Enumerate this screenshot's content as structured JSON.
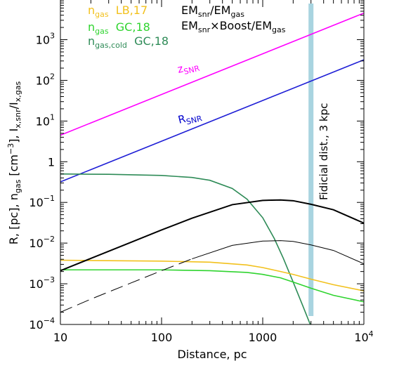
{
  "chart_data": {
    "type": "line",
    "title": "",
    "xlabel": "Distance, pc",
    "ylabel_parts": {
      "a": "R, [pc], n",
      "a_sub": "gas",
      "b": " [cm",
      "b_sup": "−3",
      "c": "], I",
      "c_sub": "x,snr",
      "d": "/I",
      "d_sub": "x,gas"
    },
    "xscale": "log",
    "yscale": "log",
    "xlim": [
      10,
      10000
    ],
    "ylim": [
      0.0001,
      10000
    ],
    "x_ticks": [
      {
        "value": 10,
        "label": "10"
      },
      {
        "value": 100,
        "label": "100"
      },
      {
        "value": 1000,
        "label": "1000"
      },
      {
        "value": 10000,
        "label": "10",
        "sup": "4"
      }
    ],
    "y_ticks": [
      {
        "value": 0.0001,
        "base": "10",
        "sup": "−4"
      },
      {
        "value": 0.001,
        "base": "10",
        "sup": "−3"
      },
      {
        "value": 0.01,
        "base": "10",
        "sup": "−2"
      },
      {
        "value": 0.1,
        "base": "10",
        "sup": "−1"
      },
      {
        "value": 1,
        "base": "1",
        "sup": ""
      },
      {
        "value": 10,
        "base": "10",
        "sup": "1"
      },
      {
        "value": 100,
        "base": "10",
        "sup": "2"
      },
      {
        "value": 1000,
        "base": "10",
        "sup": "3"
      }
    ],
    "fiducial": {
      "x": 3000,
      "label": "Fidicial dist., 3 kpc",
      "color": "#a8d4e0"
    },
    "legend": [
      {
        "main": "n",
        "sub": "gas",
        "rest": "  LB,17",
        "color": "#f2c11d"
      },
      {
        "main": "n",
        "sub": "gas",
        "rest": "  GC,18",
        "color": "#2fd42f"
      },
      {
        "main": "n",
        "sub": "gas,cold",
        "rest": "  GC,18",
        "color": "#2e8b57"
      },
      {
        "main": "EM",
        "sub": "snr",
        "rest": "/EM",
        "sub2": "gas",
        "color": "#000000"
      },
      {
        "main": "EM",
        "sub": "snr",
        "rest": "×Boost/EM",
        "sub2": "gas",
        "color": "#000000"
      }
    ],
    "curve_labels": [
      {
        "main": "z",
        "sub": "SNR",
        "color": "#ff00ff"
      },
      {
        "main": "R",
        "sub": "SNR",
        "color": "#0000cc"
      }
    ],
    "series": [
      {
        "id": "z_snr",
        "color": "#ff00ff",
        "width": 1.6,
        "dash": "",
        "x": [
          10,
          10000
        ],
        "y": [
          4.5,
          4500
        ]
      },
      {
        "id": "r_snr",
        "color": "#1f1fd6",
        "width": 1.6,
        "dash": "",
        "x": [
          10,
          10000
        ],
        "y": [
          0.32,
          320
        ]
      },
      {
        "id": "ngas_cold_gc18",
        "color": "#2e8b57",
        "width": 1.6,
        "dash": "",
        "x": [
          10,
          30,
          100,
          200,
          300,
          500,
          700,
          1000,
          1300,
          1600,
          2000,
          2500,
          3000,
          3300
        ],
        "y": [
          0.5,
          0.49,
          0.46,
          0.41,
          0.35,
          0.22,
          0.12,
          0.042,
          0.013,
          0.0042,
          0.0011,
          0.00028,
          9e-05,
          4e-05
        ]
      },
      {
        "id": "ngas_lb17",
        "color": "#f2c11d",
        "width": 1.6,
        "dash": "",
        "x": [
          10,
          30,
          100,
          300,
          700,
          1000,
          1500,
          2000,
          3000,
          5000,
          10000
        ],
        "y": [
          0.0038,
          0.0037,
          0.0036,
          0.0034,
          0.0029,
          0.0025,
          0.002,
          0.0017,
          0.0013,
          0.00095,
          0.00067
        ]
      },
      {
        "id": "ngas_gc18",
        "color": "#2fd42f",
        "width": 1.6,
        "dash": "",
        "x": [
          10,
          30,
          100,
          300,
          700,
          1000,
          1500,
          2000,
          3000,
          5000,
          10000
        ],
        "y": [
          0.0022,
          0.0022,
          0.0022,
          0.0021,
          0.0019,
          0.0017,
          0.0014,
          0.0011,
          0.00078,
          0.00052,
          0.00036
        ]
      },
      {
        "id": "em_ratio_boost",
        "color": "#000000",
        "width": 2.0,
        "dash": "",
        "x": [
          10,
          20,
          50,
          100,
          200,
          500,
          1000,
          1500,
          2000,
          3000,
          5000,
          10000
        ],
        "y": [
          0.0021,
          0.0042,
          0.0105,
          0.021,
          0.041,
          0.088,
          0.112,
          0.115,
          0.11,
          0.09,
          0.066,
          0.031
        ]
      },
      {
        "id": "em_ratio_solid",
        "color": "#000000",
        "width": 1.0,
        "dash": "",
        "x": [
          200,
          500,
          1000,
          1500,
          2000,
          3000,
          5000,
          10000
        ],
        "y": [
          0.0041,
          0.0088,
          0.0112,
          0.0115,
          0.011,
          0.009,
          0.0066,
          0.0031
        ]
      },
      {
        "id": "em_ratio_dashed",
        "color": "#000000",
        "width": 1.0,
        "dash": "18,8",
        "x": [
          10,
          20,
          50,
          100,
          200
        ],
        "y": [
          0.0002,
          0.00042,
          0.00105,
          0.0021,
          0.0041
        ]
      }
    ]
  }
}
